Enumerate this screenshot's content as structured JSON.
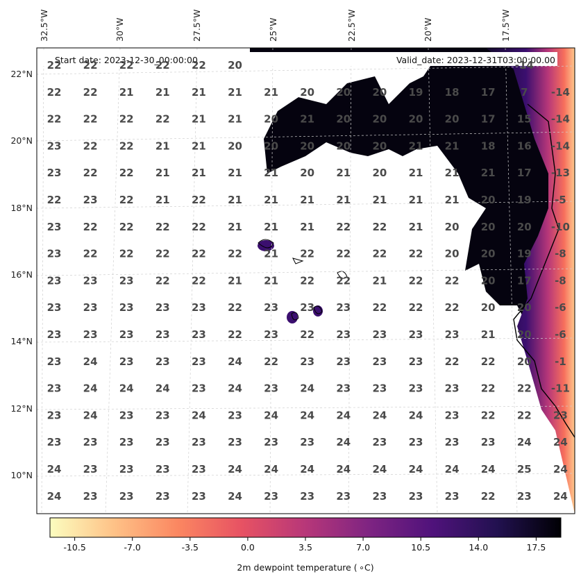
{
  "header": {
    "start_date": "Start date: 2023-12-30_00:00:00",
    "valid_date": "Valid_date: 2023-12-31T03:00:00.00"
  },
  "map": {
    "lon_labels": [
      "32.5°W",
      "30°W",
      "27.5°W",
      "25°W",
      "22.5°W",
      "20°W",
      "17.5°W"
    ],
    "lat_labels": [
      "22°N",
      "20°N",
      "18°N",
      "16°N",
      "14°N",
      "12°N",
      "10°N"
    ],
    "values": [
      [
        "22",
        "22",
        "22",
        "22",
        "22",
        "20",
        "",
        "",
        "",
        "",
        "",
        "",
        "",
        "-14"
      ],
      [
        "22",
        "22",
        "21",
        "21",
        "21",
        "21",
        "21",
        "20",
        "20",
        "20",
        "19",
        "18",
        "17",
        "7",
        "-14"
      ],
      [
        "22",
        "22",
        "22",
        "22",
        "21",
        "21",
        "20",
        "21",
        "20",
        "20",
        "20",
        "20",
        "17",
        "15",
        "-14"
      ],
      [
        "23",
        "22",
        "22",
        "21",
        "21",
        "20",
        "20",
        "20",
        "20",
        "20",
        "21",
        "21",
        "18",
        "16",
        "-14"
      ],
      [
        "23",
        "22",
        "22",
        "21",
        "21",
        "21",
        "21",
        "20",
        "21",
        "20",
        "21",
        "21",
        "21",
        "17",
        "-13"
      ],
      [
        "22",
        "23",
        "22",
        "21",
        "22",
        "21",
        "21",
        "21",
        "21",
        "21",
        "21",
        "21",
        "20",
        "19",
        "-5"
      ],
      [
        "23",
        "22",
        "22",
        "22",
        "22",
        "21",
        "21",
        "21",
        "22",
        "22",
        "21",
        "20",
        "20",
        "20",
        "-10"
      ],
      [
        "23",
        "22",
        "22",
        "22",
        "22",
        "22",
        "21",
        "22",
        "22",
        "22",
        "22",
        "20",
        "20",
        "19",
        "-8"
      ],
      [
        "23",
        "23",
        "23",
        "22",
        "22",
        "21",
        "21",
        "22",
        "22",
        "21",
        "22",
        "22",
        "20",
        "17",
        "-8"
      ],
      [
        "23",
        "23",
        "23",
        "23",
        "23",
        "22",
        "23",
        "23",
        "23",
        "22",
        "22",
        "22",
        "20",
        "20",
        "-6"
      ],
      [
        "23",
        "23",
        "23",
        "23",
        "23",
        "22",
        "23",
        "22",
        "23",
        "23",
        "23",
        "23",
        "21",
        "20",
        "-6"
      ],
      [
        "23",
        "24",
        "23",
        "23",
        "23",
        "24",
        "22",
        "23",
        "23",
        "23",
        "23",
        "22",
        "22",
        "20",
        "-1"
      ],
      [
        "23",
        "24",
        "24",
        "24",
        "23",
        "24",
        "23",
        "24",
        "23",
        "23",
        "23",
        "23",
        "22",
        "22",
        "-11"
      ],
      [
        "23",
        "24",
        "23",
        "23",
        "24",
        "23",
        "24",
        "24",
        "24",
        "24",
        "24",
        "23",
        "22",
        "22",
        "23"
      ],
      [
        "23",
        "23",
        "23",
        "23",
        "23",
        "23",
        "23",
        "23",
        "24",
        "23",
        "23",
        "23",
        "23",
        "24",
        "24"
      ],
      [
        "24",
        "23",
        "23",
        "23",
        "23",
        "24",
        "24",
        "24",
        "24",
        "24",
        "24",
        "24",
        "24",
        "25",
        "24"
      ],
      [
        "24",
        "23",
        "23",
        "23",
        "23",
        "24",
        "23",
        "23",
        "23",
        "23",
        "23",
        "23",
        "22",
        "23",
        "24"
      ]
    ]
  },
  "colorbar": {
    "ticks": [
      "-10.5",
      "-7.0",
      "-3.5",
      "0.0",
      "3.5",
      "7.0",
      "10.5",
      "14.0",
      "17.5"
    ],
    "label": "2m dewpoint temperature ( ∘C)",
    "min": -12.0,
    "max": 19.0,
    "colors": [
      "#fcfdbf",
      "#fec287",
      "#fb8761",
      "#e75263",
      "#b73779",
      "#7e2482",
      "#4f127b",
      "#221150",
      "#000004"
    ]
  }
}
